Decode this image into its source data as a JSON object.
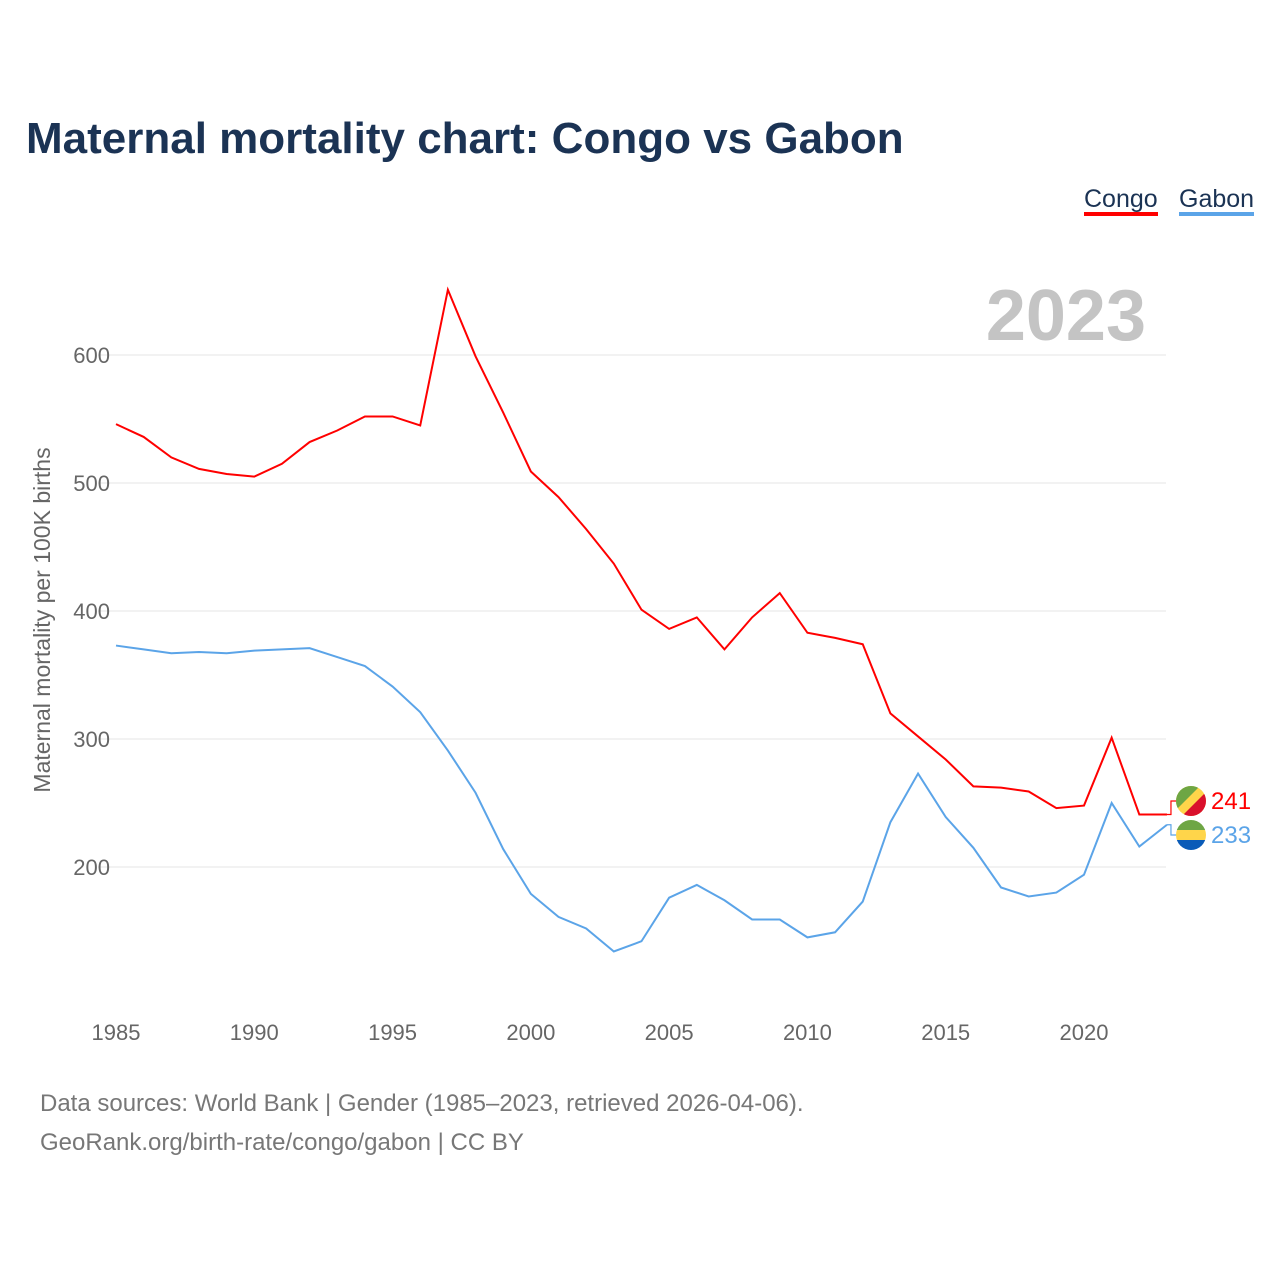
{
  "chart_data": {
    "type": "line",
    "title": "Maternal mortality chart: Congo vs Gabon",
    "ylabel": "Maternal mortality per 100K births",
    "xlabel": "",
    "year_label": "2023",
    "ylim": [
      100,
      680
    ],
    "xlim": [
      1985,
      2023
    ],
    "yticks": [
      200,
      300,
      400,
      500,
      600
    ],
    "xticks": [
      1985,
      1990,
      1995,
      2000,
      2005,
      2010,
      2015,
      2020
    ],
    "grid": true,
    "legend": "top-right",
    "x": [
      1985,
      1986,
      1987,
      1988,
      1989,
      1990,
      1991,
      1992,
      1993,
      1994,
      1995,
      1996,
      1997,
      1998,
      1999,
      2000,
      2001,
      2002,
      2003,
      2004,
      2005,
      2006,
      2007,
      2008,
      2009,
      2010,
      2011,
      2012,
      2013,
      2014,
      2015,
      2016,
      2017,
      2018,
      2019,
      2020,
      2021,
      2022,
      2023
    ],
    "series": [
      {
        "name": "Congo",
        "color": "#ff0000",
        "end_label": "241",
        "values": [
          546,
          536,
          520,
          511,
          507,
          505,
          515,
          532,
          541,
          552,
          552,
          545,
          651,
          599,
          555,
          509,
          489,
          464,
          437,
          401,
          386,
          395,
          370,
          395,
          414,
          383,
          379,
          374,
          320,
          302,
          284,
          263,
          262,
          259,
          246,
          248,
          301,
          241,
          241
        ]
      },
      {
        "name": "Gabon",
        "color": "#5ba4e8",
        "end_label": "233",
        "values": [
          373,
          370,
          367,
          368,
          367,
          369,
          370,
          371,
          364,
          357,
          341,
          321,
          291,
          258,
          214,
          179,
          161,
          152,
          134,
          142,
          176,
          186,
          174,
          159,
          159,
          145,
          149,
          173,
          235,
          273,
          239,
          215,
          184,
          177,
          180,
          194,
          250,
          216,
          233
        ]
      }
    ]
  },
  "footer": {
    "line1": "Data sources: World Bank | Gender (1985–2023, retrieved 2026-04-06).",
    "line2": "GeoRank.org/birth-rate/congo/gabon | CC BY"
  }
}
